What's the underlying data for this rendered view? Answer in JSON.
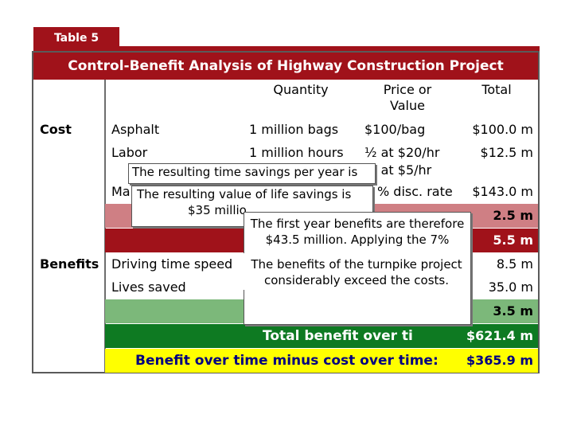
{
  "header": {
    "tab_label": "Table 5",
    "title": "Control-Benefit Analysis of Highway Construction Project"
  },
  "columns": {
    "quantity": "Quantity",
    "price_line1": "Price or",
    "price_line2": "Value",
    "total": "Total"
  },
  "cost": {
    "label": "Cost",
    "asphalt": {
      "item": "Asphalt",
      "quantity": "1 million bags",
      "price": "$100/bag",
      "total": "$100.0 m"
    },
    "labor": {
      "item": "Labor",
      "quantity": "1 million hours",
      "price_line1": "½ at $20/hr",
      "price_line2": "½ at $5/hr",
      "total": "$12.5 m"
    },
    "maint": {
      "item_fragment": "Ma",
      "price_fragment": "% disc. rate",
      "total": "$143.0 m"
    },
    "band1_total": "2.5 m",
    "band2_total": "5.5 m"
  },
  "benefits": {
    "label": "Benefits",
    "driving": {
      "item": "Driving time speed",
      "total_fragment": "8.5 m"
    },
    "lives": {
      "item": "Lives saved",
      "total_fragment": "35.0 m"
    },
    "green_total": "3.5 m",
    "total_benefit_label": "Total benefit over ti",
    "total_benefit_value": "$621.4 m",
    "net_label": "Benefit over time minus cost over time:",
    "net_value": "$365.9 m"
  },
  "callouts": {
    "time_savings": "The resulting time savings per year is",
    "life_savings_line1": "The resulting value of life savings is",
    "life_savings_line2": "$35 millio",
    "first_year_line1": "The first year benefits are therefore",
    "first_year_line2": "$43.5 million.  Applying the 7%",
    "conclusion_line1": "The benefits of the turnpike project",
    "conclusion_line2": "considerably exceed the costs."
  },
  "colors": {
    "brand_red": "#a0121a",
    "pink_band": "#cf7f84",
    "light_green": "#7cb87a",
    "dark_green": "#0e7a22",
    "highlight_yellow": "#ffff00",
    "net_text_blue": "#000080"
  }
}
